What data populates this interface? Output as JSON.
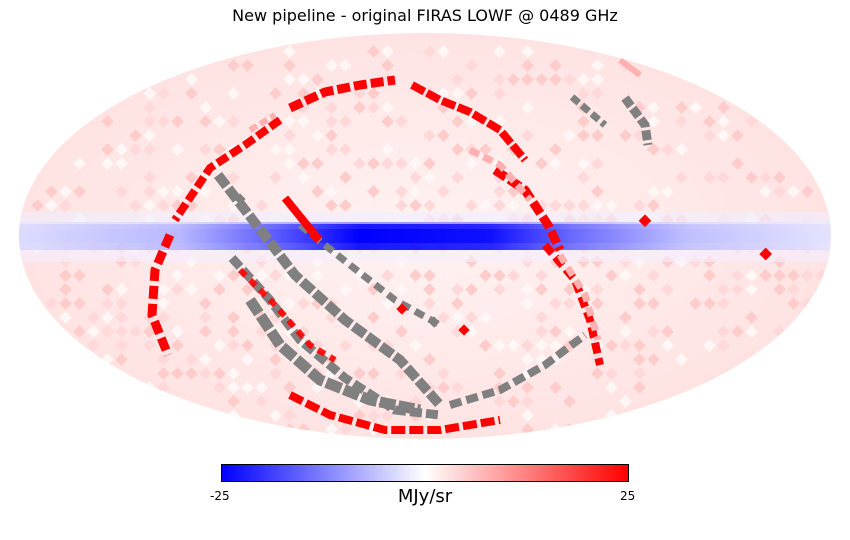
{
  "title": "New pipeline - original FIRAS LOWF @ 0489 GHz",
  "projection": "mollweide",
  "colormap": {
    "name": "bwr",
    "min_color": "#0000ff",
    "mid_color": "#ffffff",
    "max_color": "#ff0000",
    "masked_color": "#808080",
    "min_value": -25,
    "max_value": 25
  },
  "colorbar": {
    "min_label": "-25",
    "max_label": "25",
    "unit": "MJy/sr",
    "orientation": "horizontal"
  },
  "features": {
    "galactic_plane": "strong negative residual (blue) band along equator",
    "background": "weak positive residual (light pink)",
    "scan_artifacts": "saturated positive (red) and masked (gray) arcs"
  }
}
